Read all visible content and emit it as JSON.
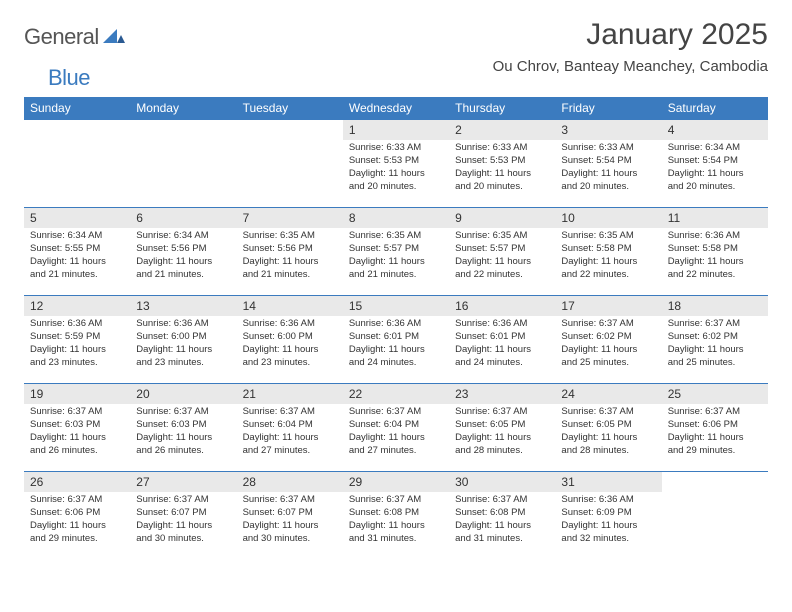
{
  "logo": {
    "text1": "General",
    "text2": "Blue"
  },
  "title": "January 2025",
  "location": "Ou Chrov, Banteay Meanchey, Cambodia",
  "colors": {
    "header_bg": "#3b7bbf",
    "header_fg": "#ffffff",
    "daynum_bg": "#e9e9e9",
    "border": "#3b7bbf",
    "text": "#333333",
    "logo_gray": "#555555",
    "logo_blue": "#3b7bbf",
    "page_bg": "#ffffff"
  },
  "typography": {
    "title_fontsize": 30,
    "location_fontsize": 15,
    "dayheader_fontsize": 12,
    "daynum_fontsize": 12,
    "body_fontsize": 9.5
  },
  "weekdays": [
    "Sunday",
    "Monday",
    "Tuesday",
    "Wednesday",
    "Thursday",
    "Friday",
    "Saturday"
  ],
  "weeks": [
    [
      null,
      null,
      null,
      {
        "n": "1",
        "sr": "6:33 AM",
        "ss": "5:53 PM",
        "dl": "11 hours and 20 minutes."
      },
      {
        "n": "2",
        "sr": "6:33 AM",
        "ss": "5:53 PM",
        "dl": "11 hours and 20 minutes."
      },
      {
        "n": "3",
        "sr": "6:33 AM",
        "ss": "5:54 PM",
        "dl": "11 hours and 20 minutes."
      },
      {
        "n": "4",
        "sr": "6:34 AM",
        "ss": "5:54 PM",
        "dl": "11 hours and 20 minutes."
      }
    ],
    [
      {
        "n": "5",
        "sr": "6:34 AM",
        "ss": "5:55 PM",
        "dl": "11 hours and 21 minutes."
      },
      {
        "n": "6",
        "sr": "6:34 AM",
        "ss": "5:56 PM",
        "dl": "11 hours and 21 minutes."
      },
      {
        "n": "7",
        "sr": "6:35 AM",
        "ss": "5:56 PM",
        "dl": "11 hours and 21 minutes."
      },
      {
        "n": "8",
        "sr": "6:35 AM",
        "ss": "5:57 PM",
        "dl": "11 hours and 21 minutes."
      },
      {
        "n": "9",
        "sr": "6:35 AM",
        "ss": "5:57 PM",
        "dl": "11 hours and 22 minutes."
      },
      {
        "n": "10",
        "sr": "6:35 AM",
        "ss": "5:58 PM",
        "dl": "11 hours and 22 minutes."
      },
      {
        "n": "11",
        "sr": "6:36 AM",
        "ss": "5:58 PM",
        "dl": "11 hours and 22 minutes."
      }
    ],
    [
      {
        "n": "12",
        "sr": "6:36 AM",
        "ss": "5:59 PM",
        "dl": "11 hours and 23 minutes."
      },
      {
        "n": "13",
        "sr": "6:36 AM",
        "ss": "6:00 PM",
        "dl": "11 hours and 23 minutes."
      },
      {
        "n": "14",
        "sr": "6:36 AM",
        "ss": "6:00 PM",
        "dl": "11 hours and 23 minutes."
      },
      {
        "n": "15",
        "sr": "6:36 AM",
        "ss": "6:01 PM",
        "dl": "11 hours and 24 minutes."
      },
      {
        "n": "16",
        "sr": "6:36 AM",
        "ss": "6:01 PM",
        "dl": "11 hours and 24 minutes."
      },
      {
        "n": "17",
        "sr": "6:37 AM",
        "ss": "6:02 PM",
        "dl": "11 hours and 25 minutes."
      },
      {
        "n": "18",
        "sr": "6:37 AM",
        "ss": "6:02 PM",
        "dl": "11 hours and 25 minutes."
      }
    ],
    [
      {
        "n": "19",
        "sr": "6:37 AM",
        "ss": "6:03 PM",
        "dl": "11 hours and 26 minutes."
      },
      {
        "n": "20",
        "sr": "6:37 AM",
        "ss": "6:03 PM",
        "dl": "11 hours and 26 minutes."
      },
      {
        "n": "21",
        "sr": "6:37 AM",
        "ss": "6:04 PM",
        "dl": "11 hours and 27 minutes."
      },
      {
        "n": "22",
        "sr": "6:37 AM",
        "ss": "6:04 PM",
        "dl": "11 hours and 27 minutes."
      },
      {
        "n": "23",
        "sr": "6:37 AM",
        "ss": "6:05 PM",
        "dl": "11 hours and 28 minutes."
      },
      {
        "n": "24",
        "sr": "6:37 AM",
        "ss": "6:05 PM",
        "dl": "11 hours and 28 minutes."
      },
      {
        "n": "25",
        "sr": "6:37 AM",
        "ss": "6:06 PM",
        "dl": "11 hours and 29 minutes."
      }
    ],
    [
      {
        "n": "26",
        "sr": "6:37 AM",
        "ss": "6:06 PM",
        "dl": "11 hours and 29 minutes."
      },
      {
        "n": "27",
        "sr": "6:37 AM",
        "ss": "6:07 PM",
        "dl": "11 hours and 30 minutes."
      },
      {
        "n": "28",
        "sr": "6:37 AM",
        "ss": "6:07 PM",
        "dl": "11 hours and 30 minutes."
      },
      {
        "n": "29",
        "sr": "6:37 AM",
        "ss": "6:08 PM",
        "dl": "11 hours and 31 minutes."
      },
      {
        "n": "30",
        "sr": "6:37 AM",
        "ss": "6:08 PM",
        "dl": "11 hours and 31 minutes."
      },
      {
        "n": "31",
        "sr": "6:36 AM",
        "ss": "6:09 PM",
        "dl": "11 hours and 32 minutes."
      },
      null
    ]
  ],
  "labels": {
    "sunrise": "Sunrise:",
    "sunset": "Sunset:",
    "daylight": "Daylight:"
  }
}
